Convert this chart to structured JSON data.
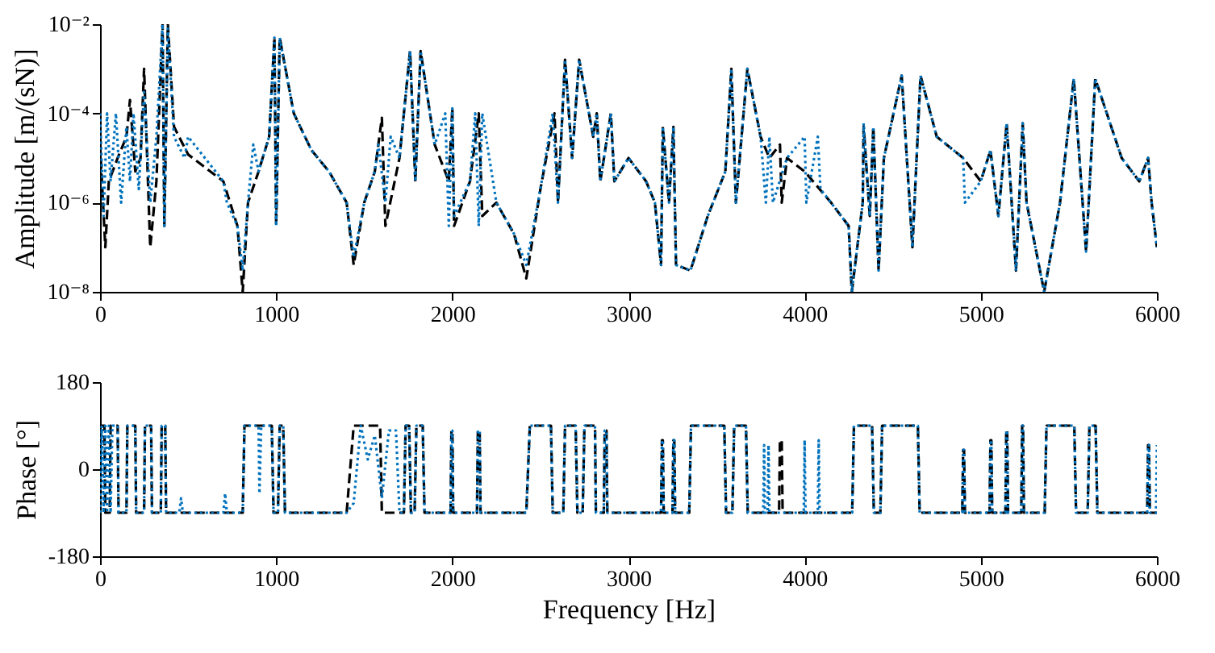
{
  "chart_data": [
    {
      "type": "line",
      "ylabel": "Amplitude [m/(sN)]",
      "log": "y",
      "xlim": [
        0,
        6000
      ],
      "xticks": [
        0,
        1000,
        2000,
        3000,
        4000,
        5000,
        6000
      ],
      "ylim": [
        1e-08,
        0.01
      ],
      "yticks": [
        {
          "value": 1e-08,
          "label": "10⁻⁸"
        },
        {
          "value": 1e-06,
          "label": "10⁻⁶"
        },
        {
          "value": 0.0001,
          "label": "10⁻⁴"
        },
        {
          "value": 0.01,
          "label": "10⁻²"
        }
      ],
      "series": [
        {
          "color": "#000000",
          "line_style": "dashed",
          "x": [
            0,
            30,
            50,
            100,
            150,
            170,
            200,
            230,
            250,
            285,
            320,
            355,
            365,
            385,
            420,
            500,
            700,
            780,
            810,
            840,
            900,
            960,
            990,
            1000,
            1020,
            1100,
            1200,
            1300,
            1400,
            1440,
            1500,
            1560,
            1600,
            1620,
            1700,
            1760,
            1790,
            1820,
            1900,
            1980,
            2000,
            2010,
            2100,
            2150,
            2170,
            2250,
            2350,
            2420,
            2500,
            2580,
            2600,
            2640,
            2680,
            2720,
            2800,
            2820,
            2840,
            2900,
            2920,
            3000,
            3100,
            3150,
            3185,
            3195,
            3230,
            3255,
            3270,
            3352,
            3450,
            3550,
            3584,
            3610,
            3675,
            3750,
            3800,
            3860,
            3870,
            3900,
            4000,
            4150,
            4250,
            4268,
            4330,
            4335,
            4370,
            4390,
            4420,
            4450,
            4551,
            4612,
            4658,
            4750,
            4900,
            5000,
            5055,
            5100,
            5147,
            5200,
            5238,
            5260,
            5360,
            5450,
            5528,
            5598,
            5650,
            5800,
            5900,
            5950,
            5970,
            6000
          ],
          "values": [
            2e-05,
            1e-07,
            3e-06,
            1e-05,
            3e-05,
            0.0002,
            5e-06,
            1e-05,
            0.001,
            1e-07,
            3e-06,
            0.01,
            3e-07,
            0.01,
            5e-05,
            1.2e-05,
            3e-06,
            3e-07,
            1e-08,
            1e-06,
            5e-06,
            3e-05,
            0.005,
            3e-07,
            0.005,
            0.0001,
            1.5e-05,
            5e-06,
            1e-06,
            4e-08,
            1e-06,
            5e-06,
            8e-05,
            3e-07,
            1e-05,
            0.0025,
            3e-06,
            0.0025,
            2e-05,
            3e-06,
            0.00013,
            3e-07,
            3e-06,
            0.0001,
            5e-07,
            1e-06,
            2e-07,
            2e-08,
            2e-06,
            0.0001,
            1e-06,
            0.0016,
            1e-05,
            0.0016,
            3e-05,
            0.0001,
            3e-06,
            0.0001,
            3e-06,
            1e-05,
            3e-06,
            1e-06,
            4e-08,
            5e-05,
            1e-06,
            5e-05,
            4e-08,
            3e-08,
            5e-07,
            5e-06,
            0.001,
            1e-06,
            0.001,
            3e-05,
            1e-05,
            2e-05,
            1e-06,
            1e-05,
            5e-06,
            1e-06,
            3e-07,
            1e-08,
            1e-06,
            5e-05,
            5e-07,
            5e-05,
            3e-08,
            1e-05,
            0.0007,
            1e-07,
            0.0007,
            3e-05,
            1e-05,
            3e-06,
            1.5e-05,
            5e-07,
            6e-05,
            3e-08,
            6e-05,
            1e-06,
            1e-08,
            1e-06,
            0.0006,
            8e-08,
            0.0006,
            1e-05,
            3e-06,
            1e-05,
            1e-06,
            1e-07
          ]
        },
        {
          "color": "#0072bd",
          "line_style": "dotted",
          "x": [
            0,
            20,
            40,
            60,
            90,
            120,
            150,
            170,
            190,
            220,
            250,
            285,
            320,
            355,
            365,
            385,
            420,
            480,
            500,
            700,
            720,
            780,
            810,
            840,
            870,
            900,
            960,
            990,
            1000,
            1020,
            1100,
            1200,
            1300,
            1400,
            1440,
            1500,
            1560,
            1580,
            1620,
            1650,
            1700,
            1760,
            1790,
            1820,
            1900,
            1960,
            1980,
            2000,
            2010,
            2100,
            2130,
            2150,
            2170,
            2250,
            2350,
            2420,
            2500,
            2570,
            2600,
            2640,
            2680,
            2720,
            2800,
            2820,
            2840,
            2900,
            2920,
            3000,
            3100,
            3150,
            3185,
            3195,
            3230,
            3255,
            3270,
            3352,
            3450,
            3550,
            3584,
            3610,
            3675,
            3750,
            3780,
            3800,
            3820,
            3900,
            4000,
            4010,
            4075,
            4090,
            4150,
            4250,
            4268,
            4330,
            4335,
            4370,
            4390,
            4420,
            4450,
            4551,
            4612,
            4658,
            4750,
            4900,
            4910,
            5000,
            5055,
            5100,
            5147,
            5200,
            5238,
            5260,
            5360,
            5450,
            5528,
            5598,
            5650,
            5800,
            5900,
            5950,
            5970,
            6000
          ],
          "values": [
            0.0001,
            5e-07,
            0.0001,
            3e-06,
            0.0001,
            1e-06,
            5e-05,
            3e-06,
            0.0001,
            2e-06,
            0.0003,
            1e-06,
            3e-05,
            0.01,
            3e-07,
            0.008,
            3e-05,
            1e-05,
            3e-05,
            3e-06,
            1e-06,
            3e-07,
            3e-08,
            1e-06,
            2e-05,
            5e-06,
            3e-05,
            0.005,
            3e-07,
            0.005,
            0.0001,
            1.5e-05,
            5e-06,
            1e-06,
            6e-08,
            1e-06,
            5e-06,
            2e-05,
            1e-06,
            3e-05,
            1e-05,
            0.0025,
            3e-06,
            0.0025,
            2e-05,
            0.0001,
            3e-07,
            0.00013,
            5e-07,
            3e-06,
            0.0001,
            3e-07,
            0.0001,
            1e-06,
            2e-07,
            4e-08,
            2e-06,
            0.0001,
            1e-06,
            0.0016,
            1e-05,
            0.0016,
            3e-05,
            0.0001,
            3e-06,
            0.0001,
            3e-06,
            1e-05,
            3e-06,
            1e-06,
            4e-08,
            5e-05,
            1e-06,
            5e-05,
            4e-08,
            3e-08,
            5e-07,
            5e-06,
            0.001,
            1e-06,
            0.001,
            3e-05,
            1e-06,
            3e-05,
            1e-06,
            1e-05,
            3e-05,
            1e-06,
            3e-05,
            2e-06,
            1e-06,
            3e-07,
            1e-08,
            1e-06,
            6e-05,
            5e-07,
            5e-05,
            3e-08,
            1e-05,
            0.0007,
            1e-07,
            0.0007,
            3e-05,
            1e-05,
            1e-06,
            3e-06,
            1.5e-05,
            5e-07,
            6e-05,
            3e-08,
            6e-05,
            1e-06,
            1e-08,
            1e-06,
            0.0006,
            8e-08,
            0.0006,
            1e-05,
            3e-06,
            1e-05,
            1e-06,
            1e-07
          ]
        }
      ]
    },
    {
      "type": "line",
      "xlabel": "Frequency [Hz]",
      "ylabel": "Phase [°]",
      "xlim": [
        0,
        6000
      ],
      "xticks": [
        0,
        1000,
        2000,
        3000,
        4000,
        5000,
        6000
      ],
      "ylim": [
        -180,
        180
      ],
      "yticks": [
        {
          "value": -180,
          "label": "-180"
        },
        0,
        180
      ],
      "series": [
        {
          "color": "#000000",
          "line_style": "dashed",
          "x": [
            0,
            25,
            30,
            55,
            60,
            100,
            105,
            150,
            155,
            200,
            205,
            250,
            255,
            290,
            295,
            345,
            350,
            370,
            375,
            810,
            820,
            975,
            985,
            1010,
            1020,
            1040,
            1050,
            1400,
            1440,
            1590,
            1600,
            1725,
            1735,
            1755,
            1765,
            1786,
            1796,
            1832,
            1842,
            1990,
            1995,
            2000,
            2005,
            2140,
            2145,
            2155,
            2160,
            2420,
            2440,
            2560,
            2570,
            2630,
            2640,
            2700,
            2710,
            2740,
            2750,
            2810,
            2815,
            2860,
            2865,
            2875,
            2880,
            3185,
            3190,
            3195,
            3200,
            3250,
            3255,
            3260,
            3265,
            3345,
            3355,
            3544,
            3554,
            3590,
            3600,
            3667,
            3677,
            3855,
            3860,
            3870,
            3875,
            4270,
            4280,
            4383,
            4393,
            4430,
            4440,
            4643,
            4653,
            4895,
            4900,
            4905,
            4910,
            5050,
            5055,
            5060,
            5065,
            5140,
            5145,
            5150,
            5155,
            5230,
            5235,
            5240,
            5245,
            5363,
            5373,
            5531,
            5541,
            5607,
            5617,
            5652,
            5662,
            5945,
            5950,
            5955,
            5960,
            6000
          ],
          "values": [
            90,
            90,
            -90,
            -90,
            90,
            90,
            -90,
            -90,
            90,
            90,
            -90,
            -90,
            90,
            90,
            -90,
            -90,
            90,
            90,
            -90,
            -90,
            90,
            90,
            -90,
            -90,
            90,
            90,
            -90,
            -90,
            90,
            90,
            -90,
            -90,
            90,
            90,
            -90,
            -90,
            90,
            90,
            -90,
            -90,
            80,
            80,
            -90,
            -90,
            80,
            80,
            -90,
            -90,
            90,
            90,
            -90,
            -90,
            90,
            90,
            -90,
            -90,
            90,
            90,
            -90,
            -90,
            80,
            80,
            -90,
            -90,
            60,
            60,
            -90,
            -90,
            60,
            60,
            -90,
            -90,
            90,
            90,
            -90,
            -90,
            90,
            90,
            -90,
            -90,
            60,
            60,
            -90,
            -90,
            90,
            90,
            -90,
            -90,
            90,
            90,
            -90,
            -90,
            40,
            40,
            -90,
            -90,
            60,
            60,
            -90,
            -90,
            80,
            80,
            -90,
            -90,
            90,
            90,
            -90,
            -90,
            90,
            90,
            -90,
            -90,
            90,
            90,
            -90,
            -90,
            50,
            50,
            -90,
            -90
          ]
        },
        {
          "color": "#0072bd",
          "line_style": "dotted",
          "x": [
            0,
            10,
            20,
            30,
            40,
            50,
            60,
            70,
            100,
            105,
            150,
            155,
            200,
            205,
            250,
            255,
            290,
            295,
            345,
            350,
            370,
            375,
            450,
            460,
            470,
            700,
            710,
            720,
            810,
            820,
            900,
            905,
            915,
            975,
            985,
            1010,
            1020,
            1040,
            1050,
            1400,
            1440,
            1480,
            1520,
            1560,
            1600,
            1640,
            1680,
            1700,
            1725,
            1735,
            1755,
            1765,
            1786,
            1796,
            1832,
            1842,
            1990,
            1995,
            2000,
            2005,
            2140,
            2145,
            2155,
            2160,
            2420,
            2440,
            2560,
            2570,
            2630,
            2640,
            2700,
            2710,
            2740,
            2750,
            2810,
            2815,
            2860,
            2865,
            2875,
            2880,
            3185,
            3190,
            3195,
            3200,
            3250,
            3255,
            3260,
            3265,
            3345,
            3355,
            3544,
            3554,
            3590,
            3600,
            3667,
            3677,
            3765,
            3770,
            3775,
            3790,
            3795,
            3800,
            3995,
            4000,
            4005,
            4075,
            4080,
            4085,
            4270,
            4280,
            4383,
            4393,
            4430,
            4440,
            4643,
            4653,
            4895,
            4900,
            4905,
            4910,
            5050,
            5055,
            5060,
            5065,
            5140,
            5145,
            5150,
            5155,
            5230,
            5235,
            5240,
            5245,
            5363,
            5373,
            5531,
            5541,
            5607,
            5617,
            5652,
            5662,
            5945,
            5950,
            5955,
            5960,
            5995,
            6000
          ],
          "values": [
            -90,
            90,
            -90,
            90,
            -90,
            90,
            -90,
            90,
            90,
            -90,
            -90,
            90,
            90,
            -90,
            -90,
            90,
            90,
            -90,
            -90,
            90,
            90,
            -90,
            -90,
            -60,
            -90,
            -90,
            -50,
            -90,
            -90,
            90,
            90,
            -50,
            90,
            90,
            -90,
            -90,
            90,
            90,
            -90,
            -90,
            -70,
            90,
            20,
            70,
            -60,
            80,
            80,
            -90,
            -90,
            90,
            90,
            -90,
            -90,
            90,
            90,
            -90,
            -90,
            80,
            80,
            -90,
            -90,
            80,
            80,
            -90,
            -90,
            90,
            90,
            -90,
            -90,
            90,
            90,
            -90,
            -90,
            90,
            90,
            -90,
            -90,
            80,
            80,
            -90,
            -90,
            60,
            60,
            -90,
            -90,
            60,
            60,
            -90,
            -90,
            90,
            90,
            -90,
            -90,
            90,
            90,
            -90,
            -90,
            50,
            -90,
            -90,
            50,
            -90,
            -90,
            60,
            -90,
            -90,
            60,
            -90,
            -90,
            90,
            90,
            -90,
            -90,
            90,
            90,
            -90,
            -90,
            40,
            40,
            -90,
            -90,
            60,
            60,
            -90,
            -90,
            80,
            80,
            -90,
            -90,
            90,
            90,
            -90,
            -90,
            90,
            90,
            -90,
            -90,
            90,
            90,
            -90,
            -90,
            50,
            50,
            -90,
            -90,
            50
          ]
        }
      ]
    }
  ]
}
